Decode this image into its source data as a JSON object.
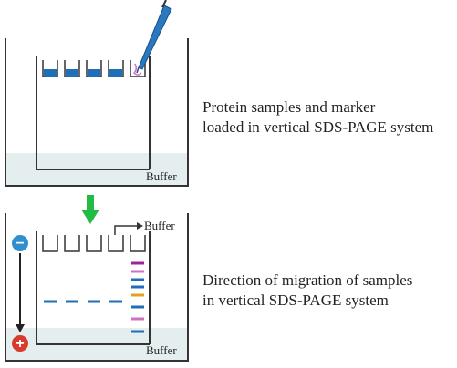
{
  "top_panel": {
    "buffer_label": "Buffer",
    "caption_line1": "Protein samples and marker",
    "caption_line2": "loaded in vertical SDS-PAGE system"
  },
  "bottom_panel": {
    "buffer_top_label": "Buffer",
    "buffer_bottom_label": "Buffer",
    "caption_line1": "Direction of migration of samples",
    "caption_line2": "in vertical SDS-PAGE system",
    "cathode_symbol": "−",
    "anode_symbol": "+"
  },
  "colors": {
    "sample_blue": "#1f6fb8",
    "buffer_fill": "#e4eeee",
    "green_arrow": "#22bb44",
    "cathode": "#2f8fcf",
    "anode": "#d83a2c",
    "marker_bands": [
      "#a020a0",
      "#d070c0",
      "#1f6fb8",
      "#1f6fb8",
      "#e6a020",
      "#1f6fb8",
      "#d070c0",
      "#1f6fb8"
    ]
  }
}
